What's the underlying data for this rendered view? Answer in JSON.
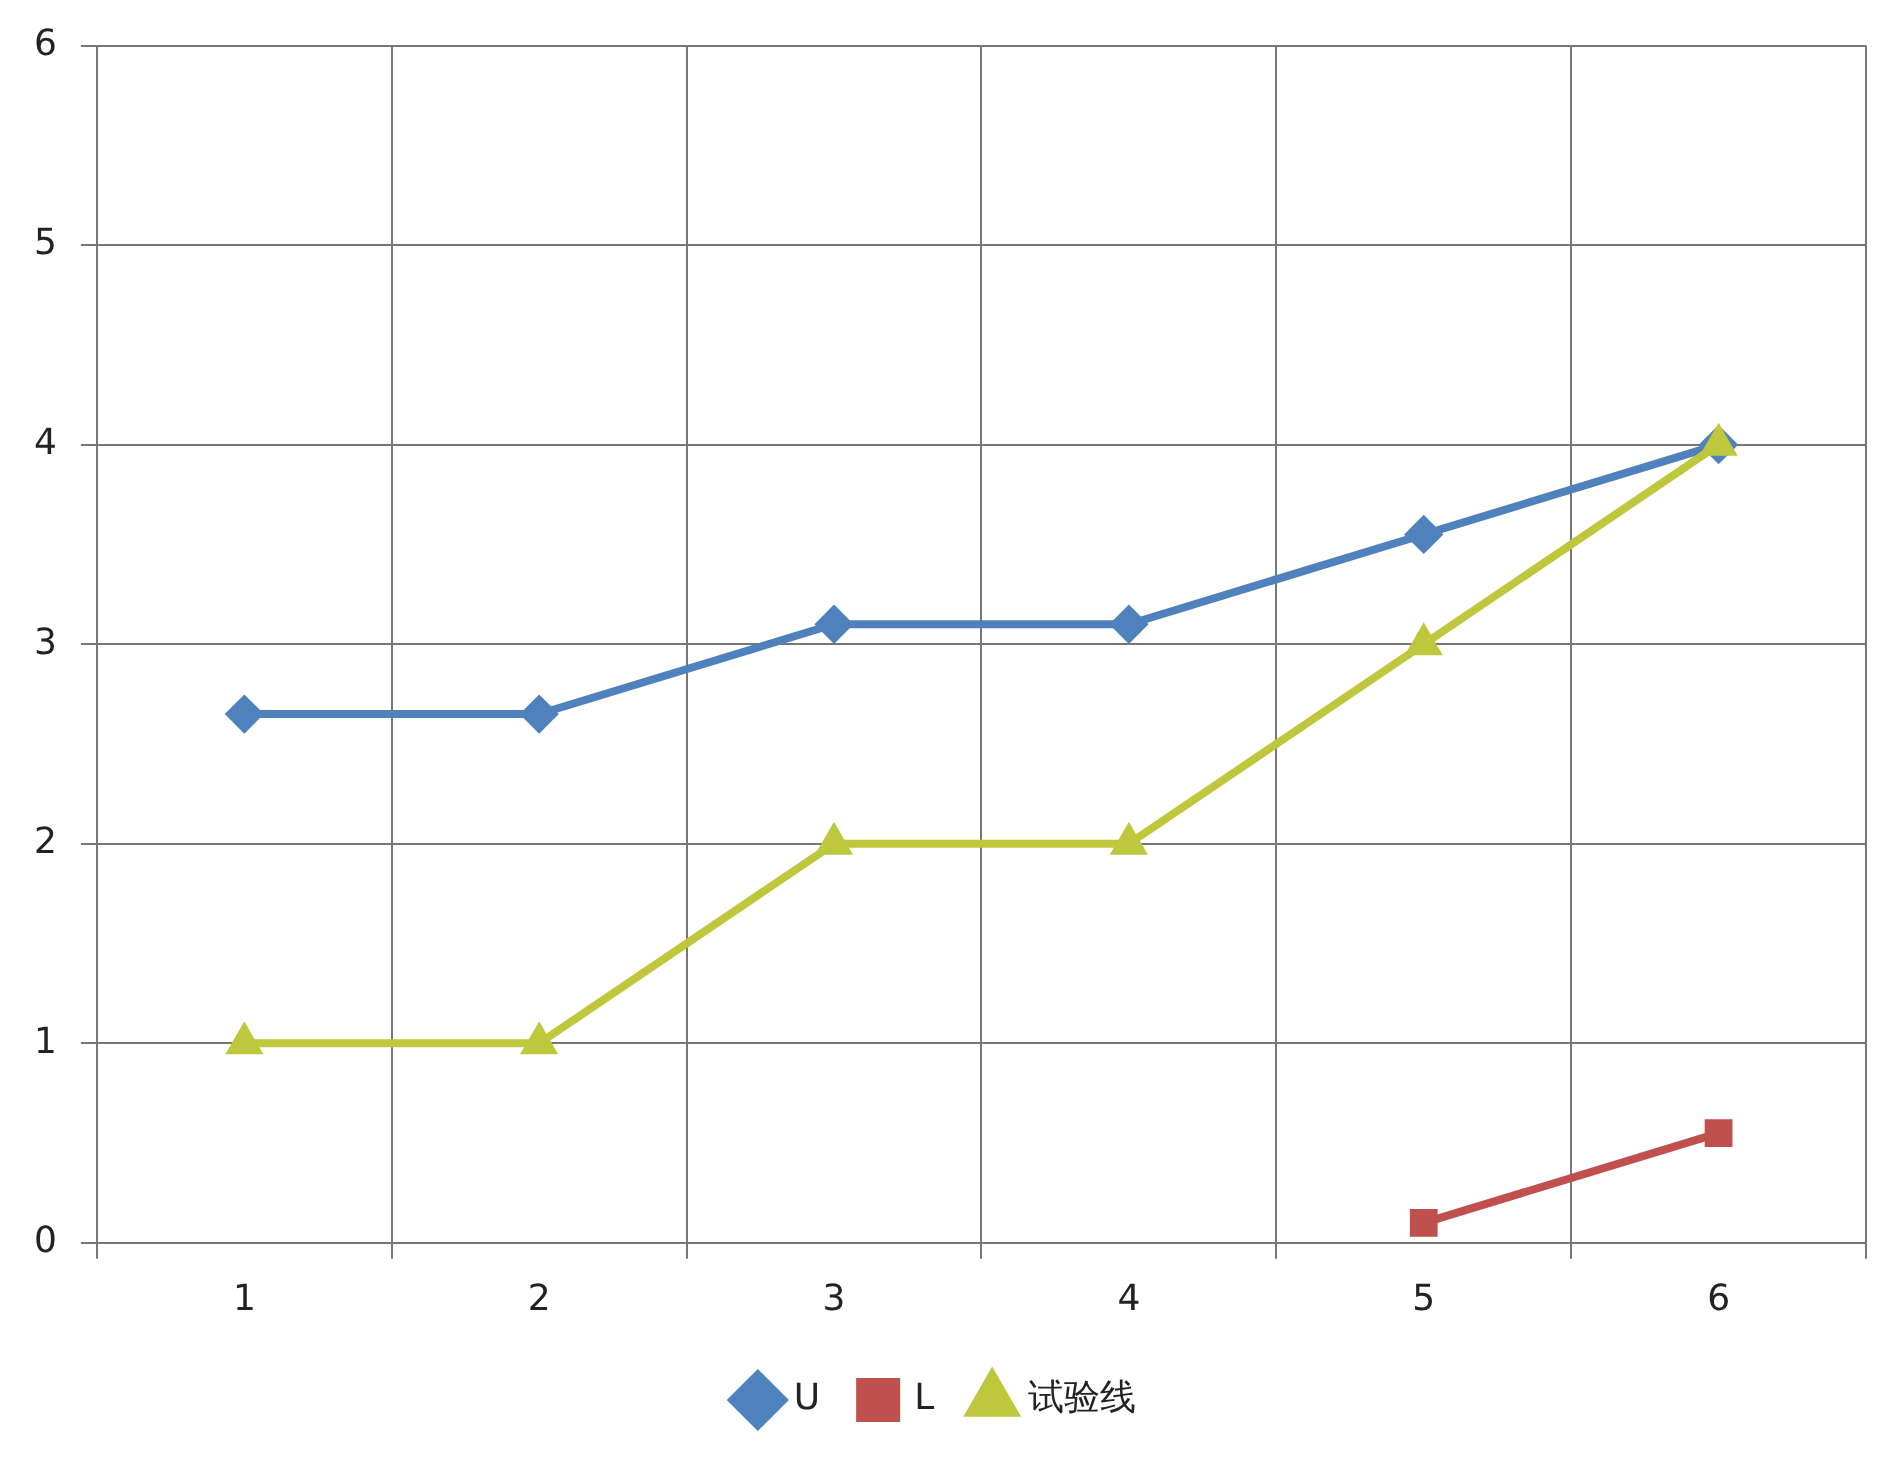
{
  "chart_data": {
    "type": "line",
    "categories": [
      "1",
      "2",
      "3",
      "4",
      "5",
      "6"
    ],
    "series": [
      {
        "name": "U",
        "color": "#4f81bd",
        "marker": "diamond",
        "values": [
          2.65,
          2.65,
          3.1,
          3.1,
          3.55,
          4
        ]
      },
      {
        "name": "L",
        "color": "#c0504d",
        "marker": "square",
        "values": [
          null,
          null,
          null,
          null,
          0.1,
          0.55
        ]
      },
      {
        "name": "试验线",
        "color": "#bfc83c",
        "marker": "triangle",
        "values": [
          1,
          1,
          2,
          2,
          3,
          4
        ]
      }
    ],
    "ylim": [
      0,
      6
    ],
    "yticks": [
      0,
      1,
      2,
      3,
      4,
      5,
      6
    ],
    "grid": true,
    "legend": "bottom"
  }
}
